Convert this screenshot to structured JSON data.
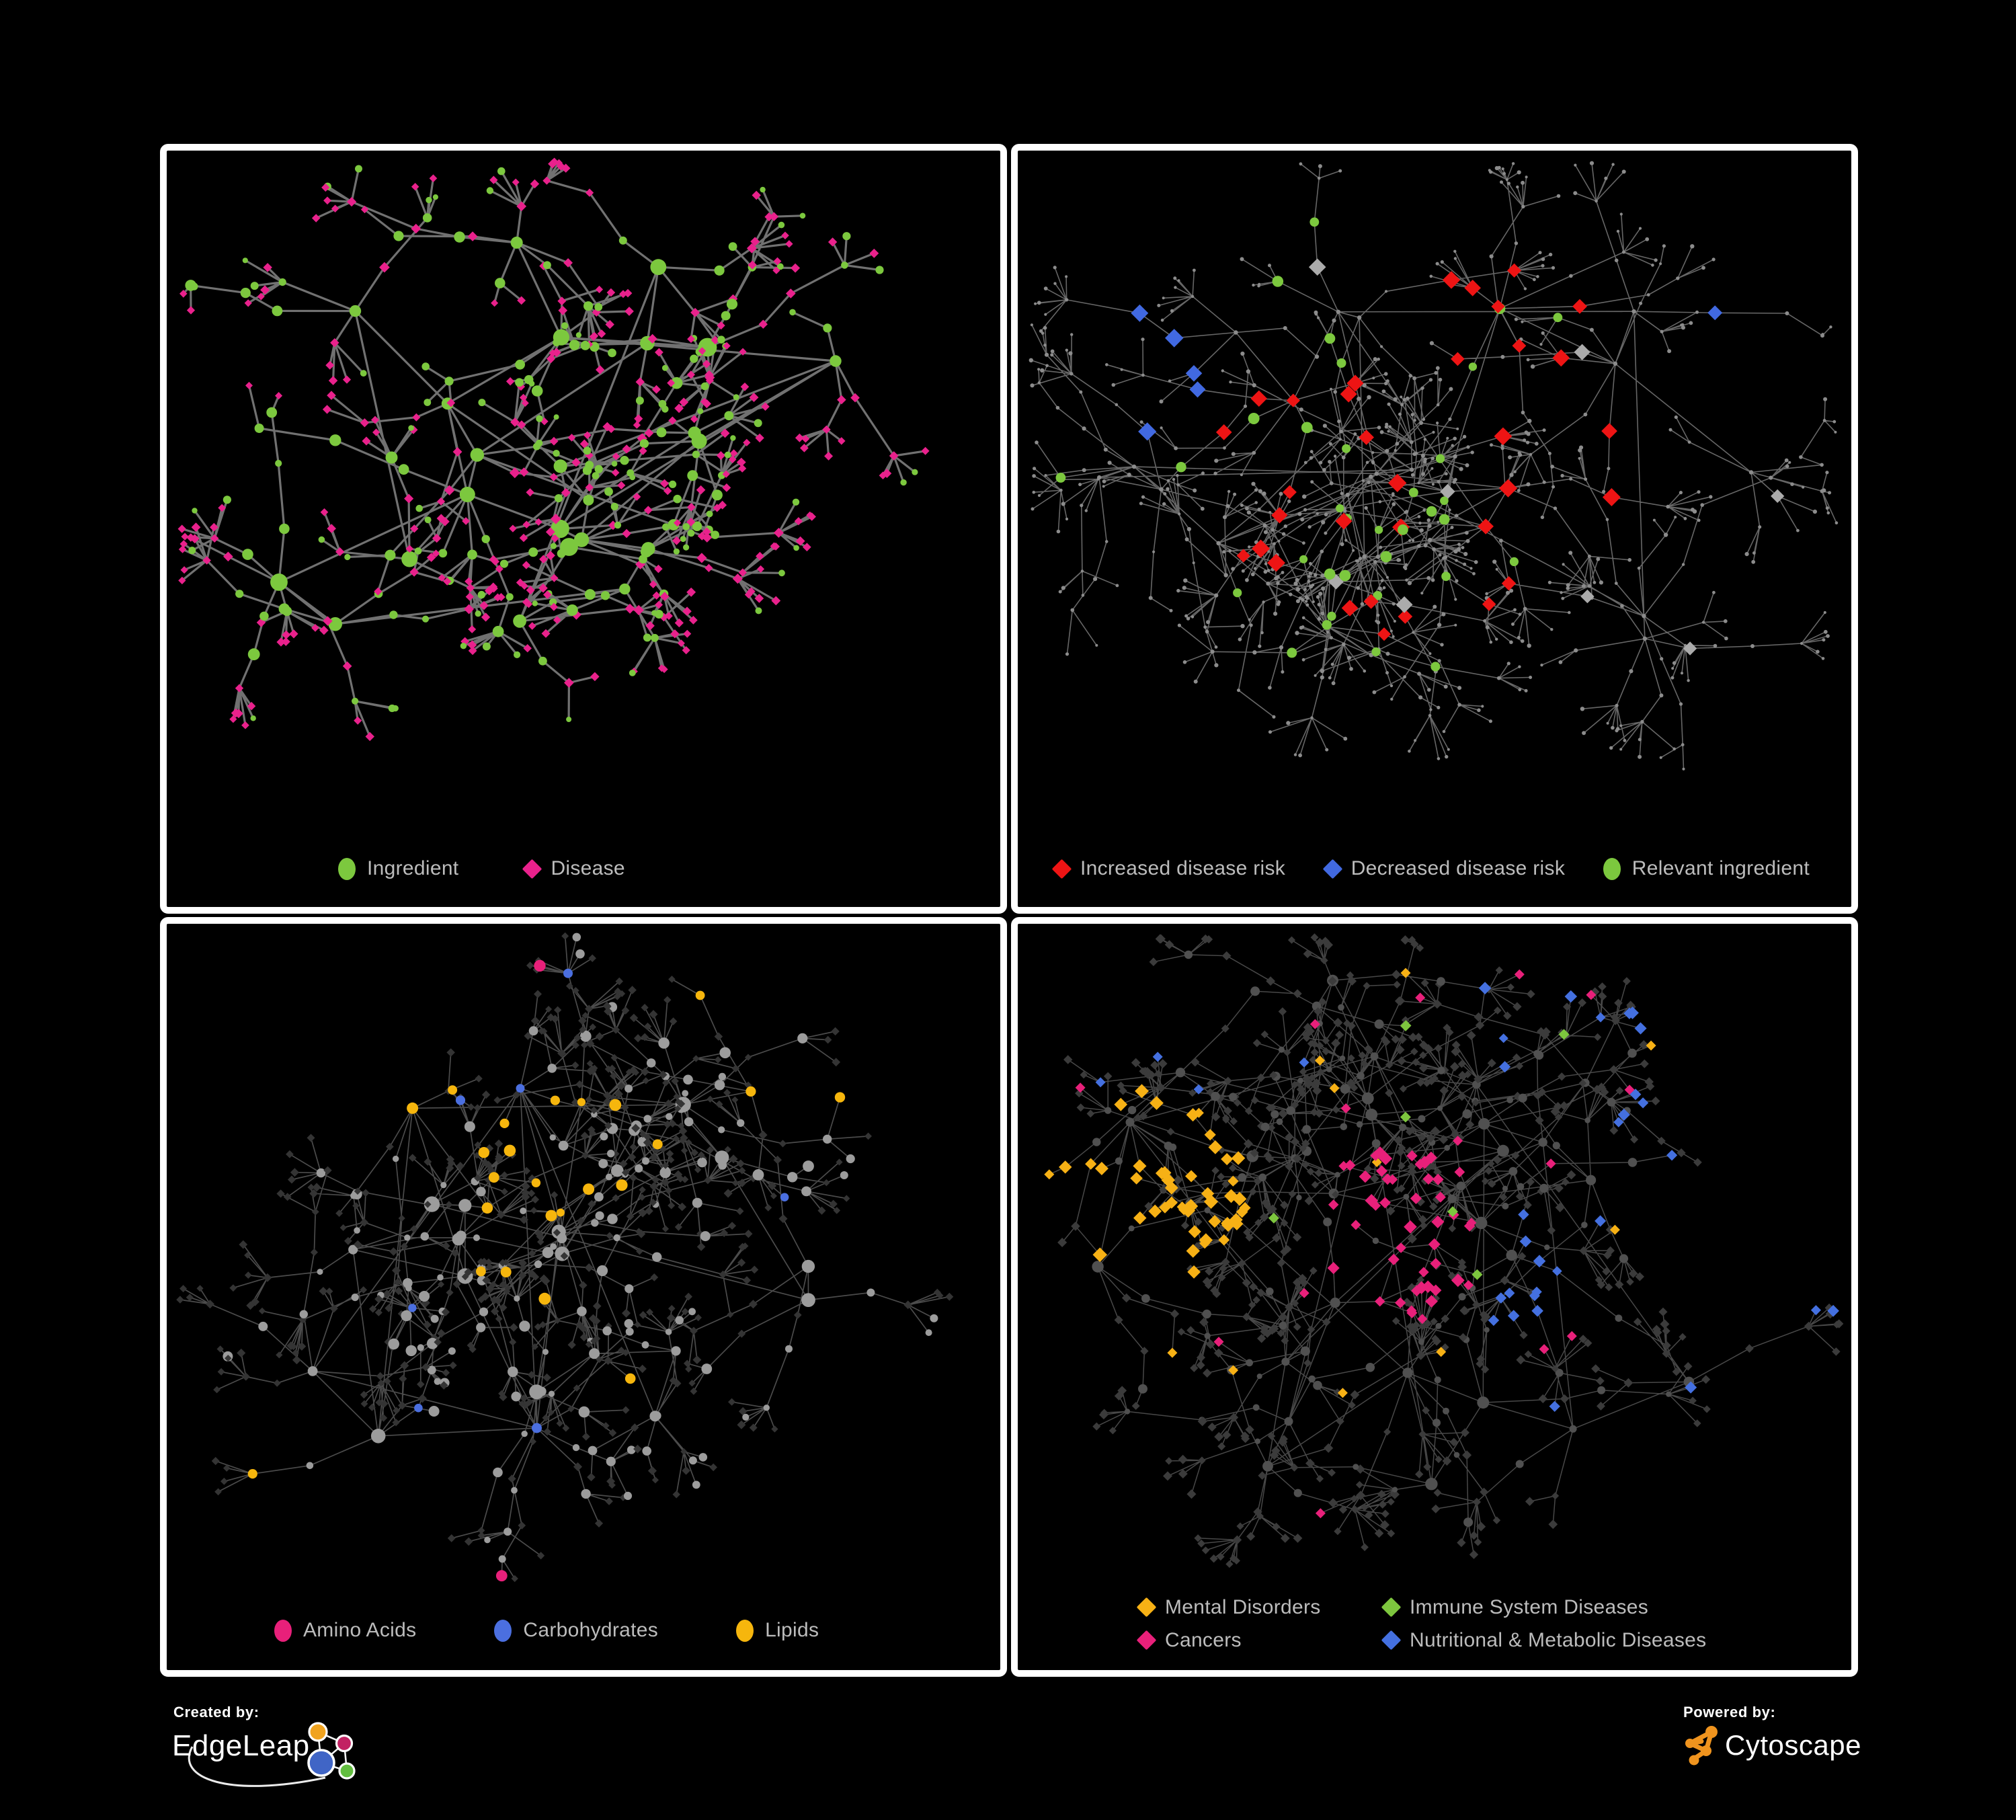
{
  "footer": {
    "created_by_label": "Created by:",
    "brand": "EdgeLeap",
    "powered_by_label": "Powered by:",
    "engine": "Cytoscape"
  },
  "colors": {
    "background": "#000000",
    "panel_border": "#ffffff",
    "legend_text": "#bcbcbc",
    "ingredient_green": "#7cc83e",
    "disease_magenta": "#e9218c",
    "risk_red": "#ee1414",
    "risk_blue": "#4169e1",
    "risk_gray": "#ababab",
    "base_dot_gray": "#8c8c8c",
    "amino_pink": "#e8207a",
    "carb_blue": "#4b6fe0",
    "lipid_orange": "#f6b60d",
    "mental_orange": "#f7b115",
    "cancer_pink": "#e8207a",
    "immune_green": "#7dc63e",
    "nutri_blue": "#4470e0",
    "muted_circle_gray": "#9c9c9c",
    "muted_diamond_dark": "#343434",
    "muted_circle_dark": "#505050",
    "muted_diamond_dark2": "#3b3b3b",
    "edge_bold": "#7b7b7b",
    "edge_gray": "#787878",
    "edge_dim_c": "#5e5e5e",
    "edge_dim_d": "#5a5a5a",
    "edgeleap_blue": "#4065c6",
    "edgeleap_orange": "#f0a31f",
    "edgeleap_pink": "#c22263",
    "edgeleap_green": "#62be3f",
    "cytoscape_orange": "#f0941e"
  },
  "panels": [
    {
      "name": "ingredient-disease-network",
      "legend": [
        {
          "label": "Ingredient",
          "shape": "circle",
          "color": "#7cc83e"
        },
        {
          "label": "Disease",
          "shape": "diamond",
          "color": "#e9218c"
        }
      ],
      "network": {
        "seed": 20,
        "hubs": 24,
        "branch_max": 5,
        "fan_max": 7,
        "spread": 0.37,
        "style": "ingredients"
      }
    },
    {
      "name": "disease-risk-network",
      "legend": [
        {
          "label": "Increased disease risk",
          "shape": "diamond",
          "color": "#ee1414"
        },
        {
          "label": "Decreased disease risk",
          "shape": "diamond",
          "color": "#4169e1"
        },
        {
          "label": "Relevant ingredient",
          "shape": "circle",
          "color": "#7cc83e"
        }
      ],
      "network": {
        "seed": 77,
        "hubs": 30,
        "branch_max": 5,
        "fan_max": 8,
        "spread": 0.4,
        "style": "risk"
      }
    },
    {
      "name": "macronutrient-network",
      "legend": [
        {
          "label": "Amino Acids",
          "shape": "circle",
          "color": "#e8207a"
        },
        {
          "label": "Carbohydrates",
          "shape": "circle",
          "color": "#4b6fe0"
        },
        {
          "label": "Lipids",
          "shape": "circle",
          "color": "#f6b60d"
        }
      ],
      "network": {
        "seed": 41,
        "hubs": 30,
        "branch_max": 5,
        "fan_max": 8,
        "spread": 0.38,
        "style": "macro"
      }
    },
    {
      "name": "disease-class-network",
      "legend": [
        {
          "label": "Mental Disorders",
          "shape": "diamond",
          "color": "#f7b115"
        },
        {
          "label": "Cancers",
          "shape": "diamond",
          "color": "#e8207a"
        },
        {
          "label": "Immune System Diseases",
          "shape": "diamond",
          "color": "#7dc63e"
        },
        {
          "label": "Nutritional & Metabolic Diseases",
          "shape": "diamond",
          "color": "#4470e0"
        }
      ],
      "network": {
        "seed": 93,
        "hubs": 32,
        "branch_max": 5,
        "fan_max": 8,
        "spread": 0.4,
        "style": "classes"
      }
    }
  ]
}
